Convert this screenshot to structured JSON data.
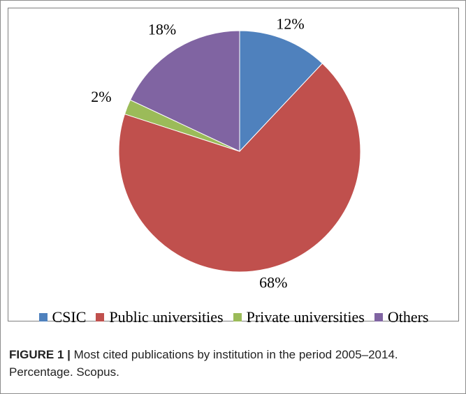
{
  "chart_data": {
    "type": "pie",
    "categories": [
      "CSIC",
      "Public universities",
      "Private universities",
      "Others"
    ],
    "values": [
      12,
      68,
      2,
      18
    ],
    "value_labels": [
      "12%",
      "68%",
      "2%",
      "18%"
    ],
    "colors": [
      "#4f81bd",
      "#c0504d",
      "#9bbb59",
      "#8064a2"
    ],
    "start_angle_deg": 0,
    "direction": "clockwise",
    "legend": "bottom"
  },
  "caption": {
    "label": "FIGURE 1 |",
    "text": "Most cited publications by institution in the period 2005–2014. Percentage. Scopus."
  }
}
